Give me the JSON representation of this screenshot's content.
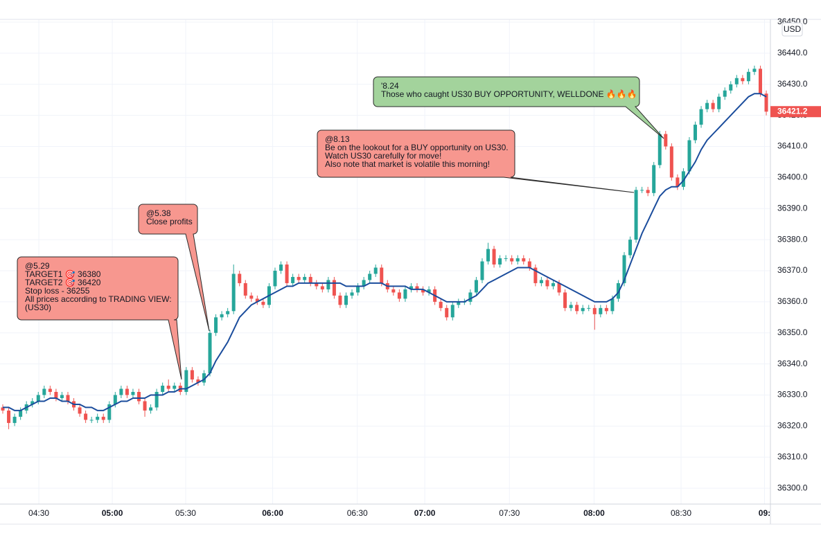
{
  "chart_data": {
    "type": "candlestick",
    "currency": "USD",
    "last_price": 36421.2,
    "grid": true,
    "up_color": "#26a69a",
    "down_color": "#ef5350",
    "xlim": [
      -0.47,
      129.7
    ],
    "xticks": [
      {
        "value": 6.09,
        "label": "04:30"
      },
      {
        "value": 18.5,
        "label": "05:00",
        "bold": true
      },
      {
        "value": 30.9,
        "label": "05:30"
      },
      {
        "value": 45.6,
        "label": "06:00",
        "bold": true
      },
      {
        "value": 59.9,
        "label": "06:30"
      },
      {
        "value": 71.3,
        "label": "07:00",
        "bold": true
      },
      {
        "value": 85.6,
        "label": "07:30"
      },
      {
        "value": 99.9,
        "label": "08:00",
        "bold": true
      },
      {
        "value": 114.6,
        "label": "08:30"
      },
      {
        "value": 128.7,
        "label": "09:",
        "bold": true
      }
    ],
    "ylim": [
      36294.9,
      36450
    ],
    "yticks": [
      {
        "value": 36300,
        "label": "36300.0"
      },
      {
        "value": 36310,
        "label": "36310.0"
      },
      {
        "value": 36320,
        "label": "36320.0"
      },
      {
        "value": 36330,
        "label": "36330.0"
      },
      {
        "value": 36340,
        "label": "36340.0"
      },
      {
        "value": 36350,
        "label": "36350.0"
      },
      {
        "value": 36360,
        "label": "36360.0"
      },
      {
        "value": 36370,
        "label": "36370.0"
      },
      {
        "value": 36380,
        "label": "36380.0"
      },
      {
        "value": 36390,
        "label": "36390.0"
      },
      {
        "value": 36400,
        "label": "36400.0"
      },
      {
        "value": 36410,
        "label": "36410.0"
      },
      {
        "value": 36420,
        "label": "36420.0"
      },
      {
        "value": 36430,
        "label": "36430.0"
      },
      {
        "value": 36440,
        "label": "36440.0"
      },
      {
        "value": 36450,
        "label": "36450.0"
      }
    ],
    "candles": {
      "open": [
        36326,
        36325,
        36321,
        36323,
        36325,
        36327,
        36328,
        36330,
        36332,
        36331,
        36329,
        36330,
        36328,
        36326,
        36324,
        36322,
        36322,
        36323,
        36322,
        36327,
        36330,
        36332,
        36330,
        36331,
        36328,
        36325,
        36326,
        36331,
        36333,
        36332,
        36333,
        36331,
        36338,
        36335,
        36334,
        36337,
        36350,
        36355,
        36356,
        36357,
        36369,
        36366,
        36362,
        36361,
        36360,
        36359,
        36365,
        36370,
        36372,
        36366,
        36368,
        36367,
        36368,
        36366,
        36365,
        36364,
        36367,
        36362,
        36359,
        36362,
        36363,
        36365,
        36367,
        36369,
        36371,
        36366,
        36364,
        36363,
        36361,
        36364,
        36365,
        36364,
        36363,
        36364,
        36360,
        36358,
        36355,
        36359,
        36360,
        36360,
        36363,
        36367,
        36373,
        36377,
        36372,
        36374,
        36374,
        36373,
        36374,
        36373,
        36371,
        36366,
        36367,
        36365,
        36366,
        36363,
        36358,
        36359,
        36357,
        36358,
        36358,
        36356,
        36358,
        36357,
        36361,
        36366,
        36375,
        36380,
        36396,
        36396,
        36395,
        36404,
        36414,
        36410,
        36400,
        36397,
        36402,
        36412,
        36417,
        36422,
        36424,
        36422,
        36426,
        36428,
        36430,
        36432,
        36431,
        36434,
        36435,
        36427
      ],
      "high": [
        36327,
        36326,
        36324,
        36326,
        36328,
        36329,
        36331,
        36333,
        36333,
        36332,
        36331,
        36331,
        36329,
        36327,
        36325,
        36323,
        36324,
        36324,
        36328,
        36331,
        36333,
        36333,
        36332,
        36332,
        36329,
        36327,
        36332,
        36334,
        36335,
        36334,
        36334,
        36339,
        36339,
        36336,
        36338,
        36351,
        36356,
        36357,
        36358,
        36372,
        36370,
        36367,
        36363,
        36362,
        36361,
        36366,
        36371,
        36373,
        36373,
        36369,
        36369,
        36369,
        36369,
        36367,
        36366,
        36368,
        36368,
        36363,
        36363,
        36364,
        36366,
        36368,
        36370,
        36372,
        36372,
        36367,
        36365,
        36364,
        36365,
        36366,
        36366,
        36365,
        36365,
        36365,
        36361,
        36359,
        36360,
        36361,
        36361,
        36364,
        36368,
        36374,
        36379,
        36378,
        36375,
        36375,
        36375,
        36375,
        36375,
        36374,
        36372,
        36368,
        36368,
        36367,
        36367,
        36364,
        36360,
        36360,
        36359,
        36359,
        36359,
        36359,
        36359,
        36362,
        36367,
        36376,
        36381,
        36397,
        36397,
        36397,
        36405,
        36415,
        36415,
        36411,
        36401,
        36403,
        36413,
        36418,
        36423,
        36425,
        36425,
        36427,
        36429,
        36431,
        36433,
        36433,
        36435,
        36436,
        36436,
        36428
      ],
      "low": [
        36324,
        36319,
        36320,
        36322,
        36324,
        36326,
        36327,
        36329,
        36330,
        36328,
        36328,
        36327,
        36325,
        36323,
        36321,
        36321,
        36321,
        36321,
        36321,
        36326,
        36329,
        36329,
        36329,
        36327,
        36323,
        36324,
        36325,
        36330,
        36331,
        36331,
        36330,
        36330,
        36334,
        36333,
        36333,
        36336,
        36349,
        36354,
        36355,
        36356,
        36365,
        36361,
        36360,
        36359,
        36358,
        36358,
        36364,
        36369,
        36365,
        36365,
        36366,
        36366,
        36365,
        36364,
        36363,
        36363,
        36361,
        36358,
        36358,
        36361,
        36362,
        36364,
        36366,
        36368,
        36365,
        36363,
        36362,
        36360,
        36360,
        36363,
        36363,
        36362,
        36362,
        36359,
        36357,
        36354,
        36354,
        36358,
        36359,
        36359,
        36362,
        36366,
        36372,
        36371,
        36371,
        36373,
        36372,
        36372,
        36372,
        36370,
        36365,
        36365,
        36364,
        36364,
        36362,
        36357,
        36357,
        36356,
        36356,
        36357,
        36351,
        36355,
        36356,
        36356,
        36360,
        36365,
        36374,
        36379,
        36395,
        36394,
        36394,
        36403,
        36409,
        36399,
        36396,
        36396,
        36401,
        36411,
        36416,
        36421,
        36421,
        36421,
        36425,
        36427,
        36429,
        36430,
        36430,
        36433,
        36426,
        36420
      ],
      "close": [
        36325,
        36321,
        36323,
        36325,
        36327,
        36328,
        36330,
        36332,
        36331,
        36329,
        36330,
        36328,
        36326,
        36324,
        36322,
        36322,
        36323,
        36322,
        36327,
        36330,
        36332,
        36330,
        36331,
        36328,
        36325,
        36326,
        36331,
        36333,
        36332,
        36333,
        36331,
        36338,
        36335,
        36334,
        36337,
        36350,
        36355,
        36356,
        36357,
        36369,
        36366,
        36362,
        36361,
        36360,
        36359,
        36365,
        36370,
        36372,
        36366,
        36368,
        36367,
        36368,
        36366,
        36365,
        36364,
        36367,
        36362,
        36359,
        36362,
        36363,
        36365,
        36367,
        36369,
        36371,
        36366,
        36364,
        36363,
        36361,
        36364,
        36365,
        36364,
        36363,
        36364,
        36360,
        36358,
        36355,
        36359,
        36360,
        36360,
        36363,
        36367,
        36373,
        36377,
        36372,
        36374,
        36374,
        36373,
        36374,
        36373,
        36371,
        36366,
        36367,
        36365,
        36366,
        36363,
        36358,
        36359,
        36357,
        36358,
        36358,
        36356,
        36358,
        36357,
        36361,
        36366,
        36375,
        36380,
        36396,
        36396,
        36395,
        36404,
        36414,
        36410,
        36400,
        36397,
        36402,
        36412,
        36417,
        36422,
        36424,
        36422,
        36426,
        36428,
        36430,
        36432,
        36431,
        36434,
        36435,
        36427,
        36421.2
      ]
    },
    "moving_average": {
      "color": "#1a4c9c",
      "values": [
        36326,
        36326,
        36325,
        36325,
        36326,
        36327,
        36328,
        36328,
        36329,
        36329,
        36328,
        36328,
        36327,
        36327,
        36326,
        36326,
        36325,
        36325,
        36326,
        36327,
        36328,
        36328,
        36329,
        36329,
        36329,
        36330,
        36330,
        36330,
        36331,
        36331,
        36332,
        36332,
        36333,
        36334,
        36335,
        36337,
        36341,
        36344,
        36347,
        36351,
        36355,
        36357,
        36359,
        36360,
        36361,
        36362,
        36363,
        36364,
        36365,
        36365,
        36366,
        36366,
        36366,
        36366,
        36366,
        36366,
        36366,
        36366,
        36365,
        36365,
        36365,
        36365,
        36366,
        36366,
        36366,
        36365,
        36365,
        36365,
        36365,
        36364,
        36364,
        36364,
        36363,
        36362,
        36361,
        36360,
        36360,
        36360,
        36360,
        36361,
        36362,
        36364,
        36366,
        36367,
        36368,
        36369,
        36370,
        36371,
        36371,
        36371,
        36370,
        36369,
        36368,
        36367,
        36366,
        36365,
        36364,
        36363,
        36362,
        36361,
        36360,
        36360,
        36360,
        36361,
        36363,
        36367,
        36372,
        36377,
        36382,
        36386,
        36390,
        36394,
        36396,
        36397,
        36397,
        36399,
        36402,
        36405,
        36409,
        36412,
        36414,
        36416,
        36418,
        36420,
        36422,
        36424,
        36426,
        36427,
        36427,
        36426
      ]
    },
    "annotations": [
      {
        "color": "#f7978f",
        "lines": [
          "@5.29",
          "TARGET1 🎯 36380",
          "TARGET2 🎯 36420",
          "Stop loss  - 36255",
          "All prices according to TRADING VIEW:",
          "(US30)"
        ]
      },
      {
        "color": "#f7978f",
        "lines": [
          "@5.38",
          "Close profits"
        ]
      },
      {
        "color": "#f7978f",
        "lines": [
          "@8.13",
          "Be on the lookout for a BUY opportunity on US30.",
          "Watch US30 carefully for move!",
          "Also note that market is volatile this morning!"
        ]
      },
      {
        "color": "#a3d39c",
        "lines": [
          "'8.24",
          "Those who caught US30 BUY OPPORTUNITY, WELLDONE 🔥🔥🔥"
        ]
      }
    ]
  }
}
